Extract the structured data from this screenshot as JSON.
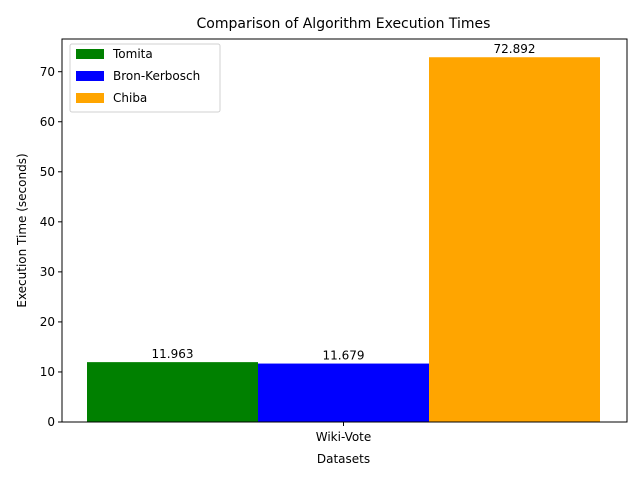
{
  "chart_data": {
    "type": "bar",
    "title": "Comparison of Algorithm Execution Times",
    "xlabel": "Datasets",
    "ylabel": "Execution Time (seconds)",
    "categories": [
      "Wiki-Vote"
    ],
    "series": [
      {
        "name": "Tomita",
        "values": [
          11.963
        ],
        "color": "#008000",
        "data_label": "11.963"
      },
      {
        "name": "Bron-Kerbosch",
        "values": [
          11.679
        ],
        "color": "#0000ff",
        "data_label": "11.679"
      },
      {
        "name": "Chiba",
        "values": [
          72.892
        ],
        "color": "#ffa500",
        "data_label": "72.892"
      }
    ],
    "yticks": [
      0,
      10,
      20,
      30,
      40,
      50,
      60,
      70
    ],
    "ylim": [
      0,
      76.5366
    ],
    "legend": "top-left",
    "grid": false
  }
}
